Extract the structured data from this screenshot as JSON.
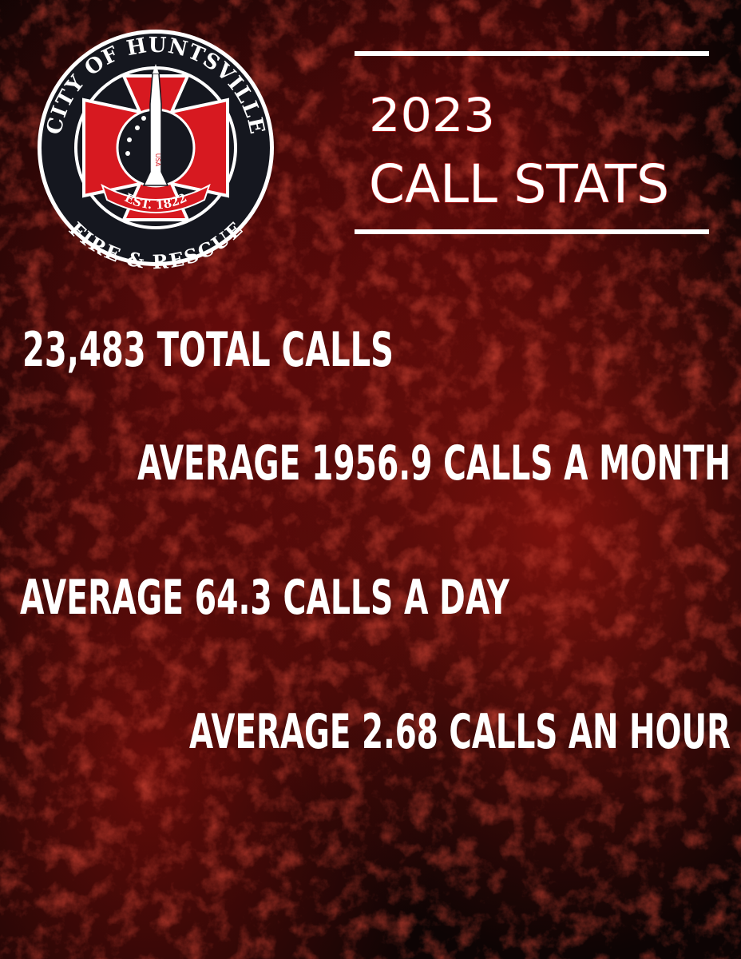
{
  "logo": {
    "top_text": "CITY OF HUNTSVILLE",
    "bottom_text": "FIRE & RESCUE",
    "established": "EST. 1822",
    "rocket_text": "USA"
  },
  "header": {
    "year": "2023",
    "title": "CALL STATS"
  },
  "stats": [
    "23,483 TOTAL CALLS",
    "AVERAGE 1956.9 CALLS A MONTH",
    "AVERAGE 64.3 CALLS A DAY",
    "AVERAGE 2.68 CALLS AN HOUR"
  ]
}
